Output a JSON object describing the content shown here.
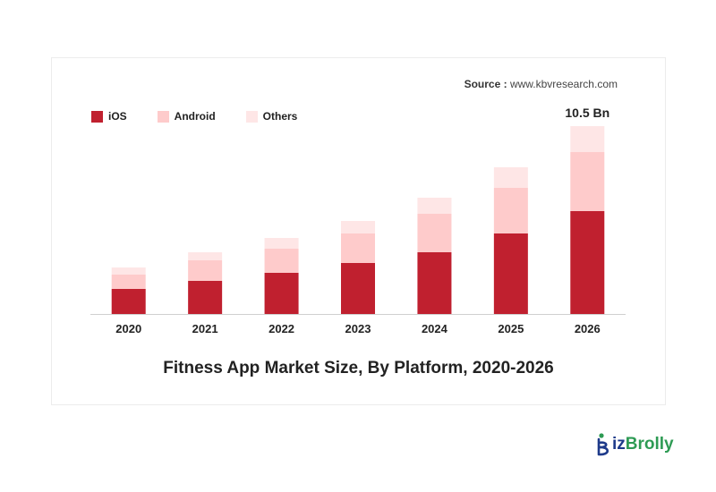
{
  "source": {
    "label": "Source :",
    "value": "www.kbvresearch.com"
  },
  "legend": [
    {
      "name": "iOS",
      "color": "#c0202f"
    },
    {
      "name": "Android",
      "color": "#fecbcb"
    },
    {
      "name": "Others",
      "color": "#fee6e6"
    }
  ],
  "top_label": "10.5 Bn",
  "brand": {
    "part1": "iz",
    "part2": "Brolly",
    "color1": "#1e3a8a",
    "color2": "#2e9b54"
  },
  "chart_data": {
    "type": "bar",
    "stacked": true,
    "title": "Fitness App Market Size, By Platform, 2020-2026",
    "unit": "Bn",
    "categories": [
      "2020",
      "2021",
      "2022",
      "2023",
      "2024",
      "2025",
      "2026"
    ],
    "series": [
      {
        "name": "iOS",
        "color": "#c0202f",
        "values": [
          1.4,
          1.85,
          2.3,
          2.85,
          3.45,
          4.5,
          5.75
        ]
      },
      {
        "name": "Android",
        "color": "#fecbcb",
        "values": [
          0.8,
          1.15,
          1.35,
          1.65,
          2.15,
          2.55,
          3.3
        ]
      },
      {
        "name": "Others",
        "color": "#fee6e6",
        "values": [
          0.4,
          0.45,
          0.6,
          0.7,
          0.9,
          1.15,
          1.45
        ]
      }
    ],
    "annotations": [
      {
        "category": "2026",
        "text": "10.5 Bn"
      }
    ],
    "ylim": [
      0,
      10.5
    ],
    "grid": false,
    "legend_position": "top-left"
  }
}
